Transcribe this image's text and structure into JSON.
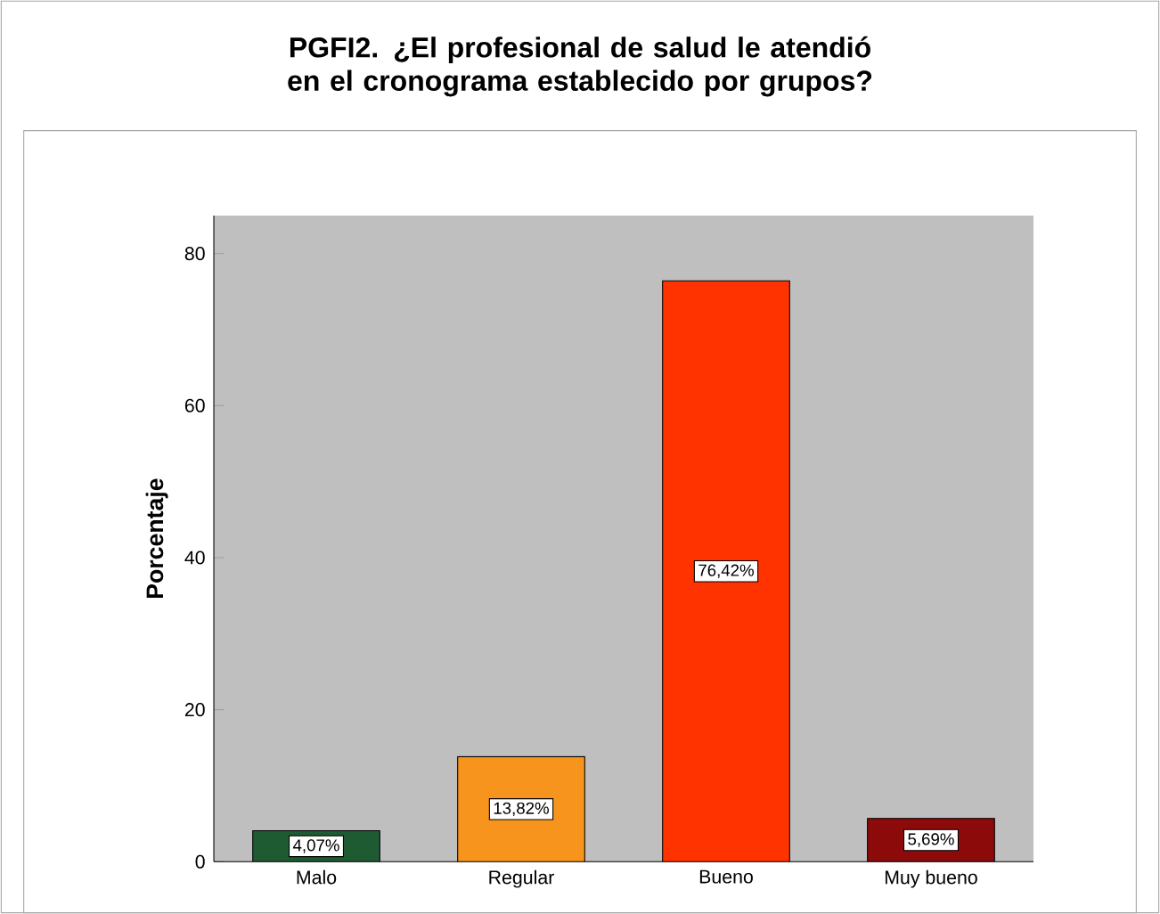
{
  "chart_data": {
    "type": "bar",
    "title": "PGFI2. ¿El profesional de salud le atendió en el cronograma establecido por grupos?",
    "ylabel": "Porcentaje",
    "categories": [
      "Malo",
      "Regular",
      "Bueno",
      "Muy bueno"
    ],
    "values": [
      4.07,
      13.82,
      76.42,
      5.69
    ],
    "colors": [
      "#1e5a32",
      "#f7941e",
      "#ff3300",
      "#8c0a0a"
    ],
    "value_labels": [
      "4,07%",
      "13,82%",
      "76,42%",
      "5,69%"
    ],
    "ylim": [
      0,
      85
    ],
    "yticks": [
      0,
      20,
      40,
      60,
      80
    ]
  }
}
